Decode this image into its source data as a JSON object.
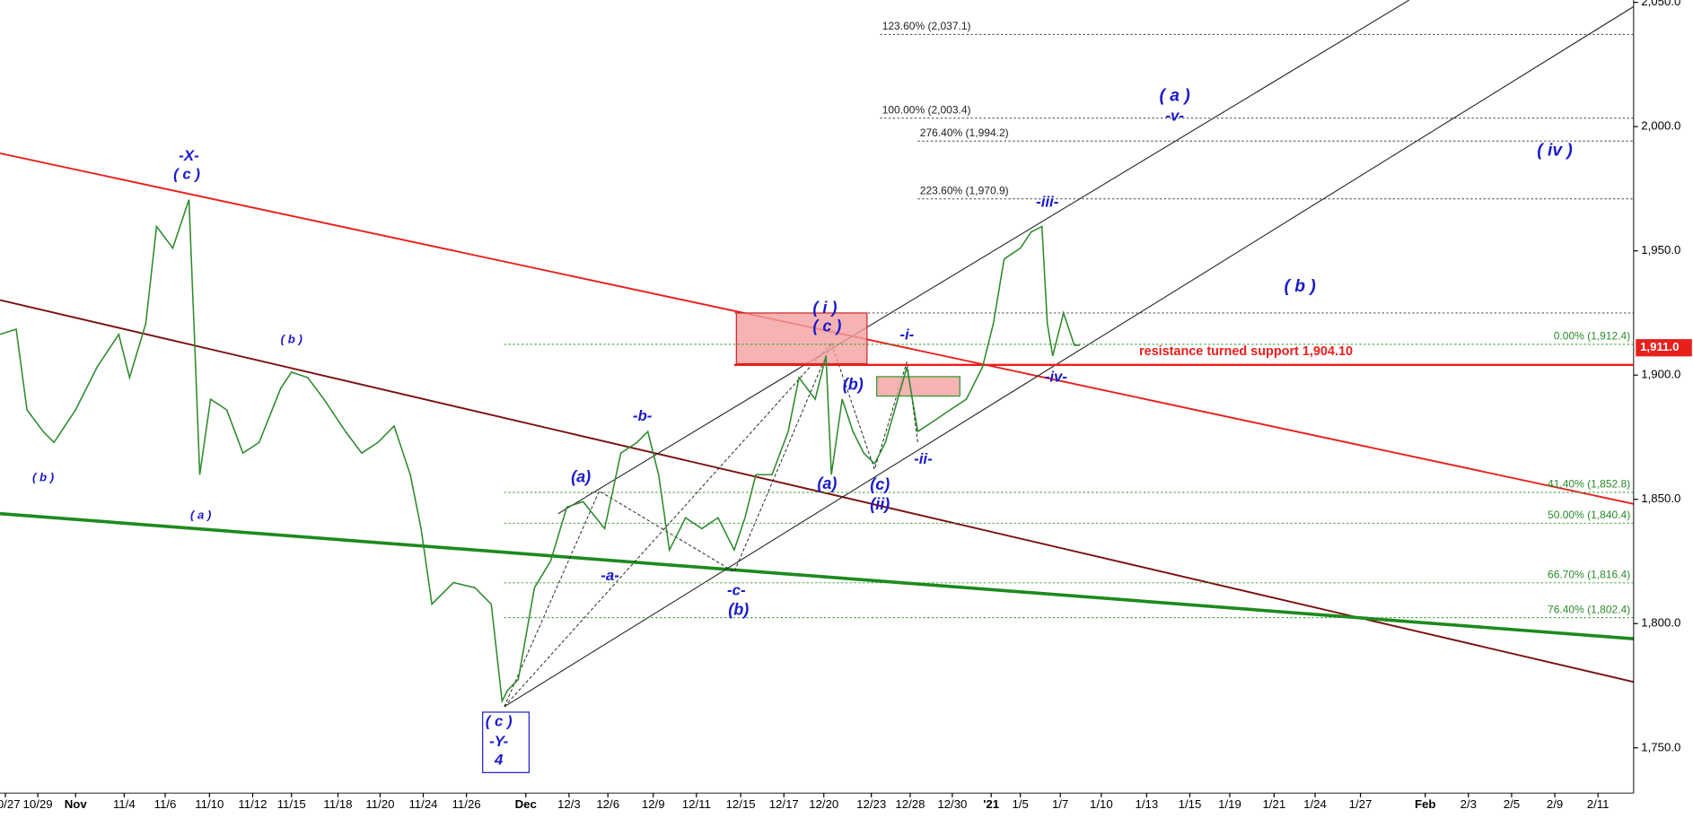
{
  "chart_data": {
    "type": "line",
    "color": "#2e8b2e",
    "x": [
      0,
      0.75,
      1.25,
      2,
      2.5,
      3.5,
      4.5,
      5.5,
      6,
      6.75,
      7.25,
      8,
      8.75,
      9,
      9.25,
      9.75,
      10.5,
      11.25,
      12,
      13,
      13.5,
      14.25,
      15,
      16,
      16.75,
      17.5,
      18.25,
      19,
      19.5,
      20,
      21,
      22,
      22.75,
      23.25,
      23.5,
      24,
      24.75,
      25.5,
      26.25,
      27,
      28,
      28.75,
      29.5,
      30,
      30.5,
      31,
      31.75,
      32.5,
      33.25,
      34,
      34.5,
      35,
      35.75,
      36.5,
      37,
      37.75,
      38.25,
      38.5,
      39,
      39.5,
      40,
      40.5,
      41,
      42,
      42.5,
      43.25,
      44,
      44.75,
      45.5,
      46,
      46.5,
      47.25,
      47.75,
      48.25,
      48.5,
      48.75,
      49.25,
      49.75,
      50
    ],
    "values": [
      1916.4,
      1918.5,
      1886,
      1877.3,
      1872.9,
      1886,
      1903.3,
      1916.4,
      1899,
      1920.7,
      1959.8,
      1951.1,
      1970.6,
      1916.4,
      1859.9,
      1890.3,
      1886,
      1868.6,
      1872.9,
      1894.7,
      1901.2,
      1899,
      1890.3,
      1877.3,
      1868.6,
      1872.9,
      1879.5,
      1859.9,
      1838.2,
      1807.8,
      1816.5,
      1814.4,
      1807.8,
      1768.8,
      1773.1,
      1777.5,
      1814.4,
      1825.2,
      1846.9,
      1849.1,
      1838.2,
      1868.6,
      1872.9,
      1877.3,
      1859.9,
      1829.6,
      1842.6,
      1838.2,
      1842.6,
      1829.6,
      1842.6,
      1859.9,
      1859.9,
      1877.3,
      1899,
      1890.3,
      1907.7,
      1859.9,
      1890.3,
      1877.3,
      1868.6,
      1864.3,
      1872.9,
      1903.3,
      1877.3,
      1881.6,
      1886,
      1890.3,
      1903.3,
      1920.7,
      1946.7,
      1951.1,
      1957.6,
      1959.8,
      1920.7,
      1907.7,
      1925,
      1912,
      1912
    ],
    "xlim": [
      0,
      75.65
    ],
    "xticks": [
      {
        "value": 0.25,
        "label": "10/27"
      },
      {
        "value": 1.75,
        "label": "10/29"
      },
      {
        "value": 3.5,
        "label": "Nov"
      },
      {
        "value": 5.75,
        "label": "11/4"
      },
      {
        "value": 7.65,
        "label": "11/6"
      },
      {
        "value": 9.7,
        "label": "11/10"
      },
      {
        "value": 11.7,
        "label": "11/12"
      },
      {
        "value": 13.5,
        "label": "11/15"
      },
      {
        "value": 15.65,
        "label": "11/18"
      },
      {
        "value": 17.6,
        "label": "11/20"
      },
      {
        "value": 19.6,
        "label": "11/24"
      },
      {
        "value": 21.6,
        "label": "11/26"
      },
      {
        "value": 24.35,
        "label": "Dec"
      },
      {
        "value": 26.35,
        "label": "12/3"
      },
      {
        "value": 28.15,
        "label": "12/6"
      },
      {
        "value": 30.25,
        "label": "12/9"
      },
      {
        "value": 32.25,
        "label": "12/11"
      },
      {
        "value": 34.3,
        "label": "12/15"
      },
      {
        "value": 36.3,
        "label": "12/17"
      },
      {
        "value": 38.15,
        "label": "12/20"
      },
      {
        "value": 40.35,
        "label": "12/23"
      },
      {
        "value": 42.15,
        "label": "12/28"
      },
      {
        "value": 44.1,
        "label": "12/30"
      },
      {
        "value": 45.9,
        "label": "'21"
      },
      {
        "value": 47.25,
        "label": "1/5"
      },
      {
        "value": 49.1,
        "label": "1/7"
      },
      {
        "value": 51,
        "label": "1/10"
      },
      {
        "value": 53.1,
        "label": "1/13"
      },
      {
        "value": 55.1,
        "label": "1/15"
      },
      {
        "value": 56.95,
        "label": "1/19"
      },
      {
        "value": 59,
        "label": "1/21"
      },
      {
        "value": 60.9,
        "label": "1/24"
      },
      {
        "value": 63,
        "label": "1/27"
      },
      {
        "value": 66,
        "label": "Feb"
      },
      {
        "value": 68,
        "label": "2/3"
      },
      {
        "value": 70,
        "label": "2/5"
      },
      {
        "value": 72,
        "label": "2/9"
      },
      {
        "value": 74,
        "label": "2/11"
      }
    ],
    "ylim": [
      1731.8,
      2050.9
    ],
    "yticks": [
      {
        "value": 1750,
        "label": "1,750.0"
      },
      {
        "value": 1800,
        "label": "1,800.0"
      },
      {
        "value": 1850,
        "label": "1,850.0"
      },
      {
        "value": 1900,
        "label": "1,900.0"
      },
      {
        "value": 1950,
        "label": "1,950.0"
      },
      {
        "value": 2000,
        "label": "2,000.0"
      },
      {
        "value": 2050,
        "label": "2,050.0"
      }
    ],
    "last_price": {
      "value": 1911,
      "label": "1,911.0"
    },
    "resistance": {
      "value": 1904.1,
      "label": "resistance turned support 1,904.10"
    },
    "fib_levels": [
      {
        "value": 2037.1,
        "label": "123.60% (2,037.1)"
      },
      {
        "value": 2003.4,
        "label": "100.00% (2,003.4)"
      },
      {
        "value": 1994.2,
        "label": "276.40% (1,994.2)"
      },
      {
        "value": 1970.9,
        "label": "223.60% (1,970.9)"
      },
      {
        "value": 1912.4,
        "label": "0.00% (1,912.4)"
      },
      {
        "value": 1852.8,
        "label": "41.40% (1,852.8)"
      },
      {
        "value": 1840.4,
        "label": "50.00% (1,840.4)"
      },
      {
        "value": 1816.4,
        "label": "66.70% (1,816.4)"
      },
      {
        "value": 1802.4,
        "label": "76.40% (1,802.4)"
      }
    ],
    "annotations": [
      "-X-",
      "( c )",
      "( b )",
      "( a )",
      "( b )",
      "(a)",
      "-b-",
      "-a-",
      "-c-",
      "(b)",
      "( i )",
      "( c )",
      "(b)",
      "(a)",
      "(c)",
      "(ii)",
      "-i-",
      "-ii-",
      "-iii-",
      "-iv-",
      "( a )",
      "-v-",
      "( iv )",
      "( b )",
      "( c )",
      "-Y-",
      "4"
    ]
  }
}
